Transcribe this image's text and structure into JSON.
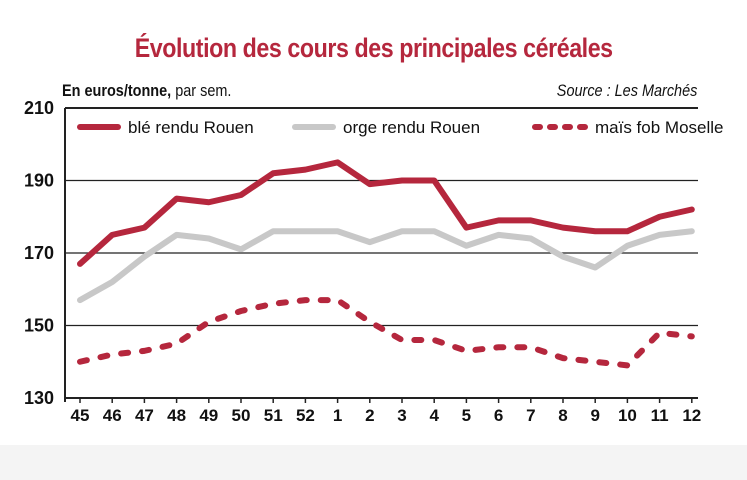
{
  "chart_data": {
    "type": "line",
    "title": "Évolution des cours des principales céréales",
    "unit_label_bold": "En euros/tonne,",
    "unit_label_rest": " par sem.",
    "source": "Source : Les Marchés",
    "categories": [
      "45",
      "46",
      "47",
      "48",
      "49",
      "50",
      "51",
      "52",
      "1",
      "2",
      "3",
      "4",
      "5",
      "6",
      "7",
      "8",
      "9",
      "10",
      "11",
      "12"
    ],
    "ylim": [
      130,
      210
    ],
    "yticks": [
      130,
      150,
      170,
      190,
      210
    ],
    "grid": true,
    "legend_position": "top",
    "series": [
      {
        "name": "blé rendu Rouen",
        "color": "#b5273d",
        "style": "solid",
        "values": [
          167,
          175,
          177,
          185,
          184,
          186,
          192,
          193,
          195,
          189,
          190,
          190,
          177,
          179,
          179,
          177,
          176,
          176,
          180,
          182
        ]
      },
      {
        "name": "orge rendu Rouen",
        "color": "#c8c8c8",
        "style": "solid",
        "values": [
          157,
          162,
          169,
          175,
          174,
          171,
          176,
          176,
          176,
          173,
          176,
          176,
          172,
          175,
          174,
          169,
          166,
          172,
          175,
          176
        ]
      },
      {
        "name": "maïs fob Moselle",
        "color": "#b5273d",
        "style": "dashed",
        "values": [
          140,
          142,
          143,
          145,
          151,
          154,
          156,
          157,
          157,
          151,
          146,
          146,
          143,
          144,
          144,
          141,
          140,
          139,
          148,
          147
        ]
      }
    ]
  }
}
